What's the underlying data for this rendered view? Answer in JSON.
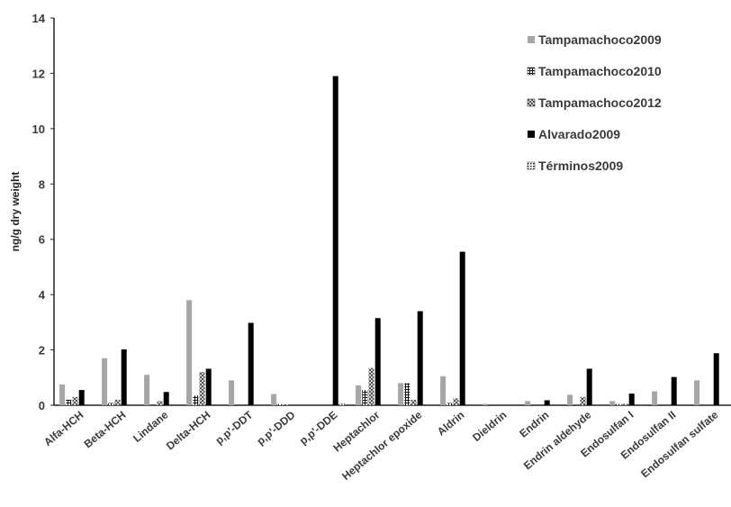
{
  "chart_data": {
    "type": "bar",
    "ylabel": "ng/g dry weight",
    "xlabel": "",
    "ylim": [
      0,
      14
    ],
    "yticks": [
      0,
      2,
      4,
      6,
      8,
      10,
      12,
      14
    ],
    "grid": false,
    "legend_position": "top-right",
    "categories": [
      "Alfa-HCH",
      "Beta-HCH",
      "Lindane",
      "Delta-HCH",
      "p,p'-DDT",
      "p,p'-DDD",
      "p,p'-DDE",
      "Heptachlor",
      "Heptachlor epoxide",
      "Aldrin",
      "Dieldrin",
      "Endrin",
      "Endrin aldehyde",
      "Endosulfan I",
      "Endosulfan II",
      "Endosulfan sulfate"
    ],
    "series": [
      {
        "name": "Tampamachoco2009",
        "color": "#a6a6a6",
        "pattern": "solid",
        "values": [
          0.75,
          1.7,
          1.1,
          3.8,
          0.9,
          0.4,
          0.0,
          0.72,
          0.8,
          1.05,
          0.05,
          0.15,
          0.38,
          0.15,
          0.5,
          0.9
        ]
      },
      {
        "name": "Tampamachoco2010",
        "color": "#222222",
        "pattern": "grid",
        "values": [
          0.2,
          0.08,
          0.0,
          0.35,
          0.0,
          0.04,
          0.0,
          0.55,
          0.8,
          0.08,
          0.0,
          0.0,
          0.0,
          0.05,
          0.0,
          0.0
        ]
      },
      {
        "name": "Tampamachoco2012",
        "color": "#666666",
        "pattern": "checker",
        "values": [
          0.3,
          0.2,
          0.15,
          1.2,
          0.0,
          0.03,
          0.0,
          1.35,
          0.2,
          0.25,
          0.0,
          0.0,
          0.3,
          0.05,
          0.0,
          0.0
        ]
      },
      {
        "name": "Alvarado2009",
        "color": "#000000",
        "pattern": "solid",
        "values": [
          0.55,
          2.02,
          0.48,
          1.32,
          2.98,
          0.0,
          11.9,
          3.15,
          3.4,
          5.55,
          0.0,
          0.18,
          1.32,
          0.42,
          1.02,
          1.88
        ]
      },
      {
        "name": "Términos2009",
        "color": "#333333",
        "pattern": "dots",
        "values": [
          0.0,
          0.0,
          0.0,
          0.0,
          0.0,
          0.0,
          0.06,
          0.0,
          0.0,
          0.0,
          0.0,
          0.0,
          0.0,
          0.0,
          0.0,
          0.0
        ]
      }
    ]
  }
}
